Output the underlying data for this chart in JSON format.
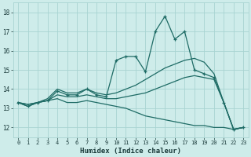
{
  "xlabel": "Humidex (Indice chaleur)",
  "background_color": "#ceecea",
  "grid_color": "#a8d4d2",
  "line_color": "#1e6b65",
  "xlim": [
    -0.5,
    23.5
  ],
  "ylim": [
    11.5,
    18.5
  ],
  "yticks": [
    12,
    13,
    14,
    15,
    16,
    17,
    18
  ],
  "xticks": [
    0,
    1,
    2,
    3,
    4,
    5,
    6,
    7,
    8,
    9,
    10,
    11,
    12,
    13,
    14,
    15,
    16,
    17,
    18,
    19,
    20,
    21,
    22,
    23
  ],
  "line_main": [
    13.3,
    13.1,
    13.3,
    13.4,
    13.9,
    13.7,
    13.7,
    14.0,
    13.7,
    13.6,
    15.5,
    15.7,
    15.7,
    14.9,
    17.0,
    17.8,
    16.6,
    17.0,
    15.0,
    14.8,
    14.6,
    13.3,
    11.9,
    12.0
  ],
  "line_high": [
    13.3,
    13.2,
    13.3,
    13.5,
    14.0,
    13.8,
    13.8,
    14.0,
    13.8,
    13.7,
    13.8,
    14.0,
    14.2,
    14.5,
    14.8,
    15.1,
    15.3,
    15.5,
    15.6,
    15.4,
    14.8,
    13.3,
    11.9,
    12.0
  ],
  "line_mid": [
    13.3,
    13.2,
    13.3,
    13.4,
    13.7,
    13.6,
    13.6,
    13.7,
    13.6,
    13.5,
    13.5,
    13.6,
    13.7,
    13.8,
    14.0,
    14.2,
    14.4,
    14.6,
    14.7,
    14.6,
    14.5,
    13.3,
    11.9,
    12.0
  ],
  "line_low": [
    13.3,
    13.1,
    13.3,
    13.4,
    13.5,
    13.3,
    13.3,
    13.4,
    13.3,
    13.2,
    13.1,
    13.0,
    12.8,
    12.6,
    12.5,
    12.4,
    12.3,
    12.2,
    12.1,
    12.1,
    12.0,
    12.0,
    11.9,
    12.0
  ]
}
